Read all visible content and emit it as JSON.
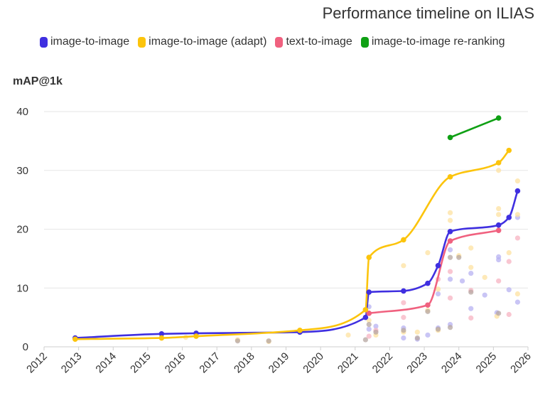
{
  "chart_data": {
    "type": "line",
    "title": "Performance timeline on ILIAS",
    "ylabel": "mAP@1k",
    "xlabel": "",
    "xlim": [
      2012,
      2026
    ],
    "ylim": [
      0,
      40
    ],
    "x_ticks": [
      "2012",
      "2013",
      "2014",
      "2015",
      "2016",
      "2017",
      "2018",
      "2019",
      "2020",
      "2021",
      "2022",
      "2023",
      "2024",
      "2025",
      "2026"
    ],
    "y_ticks": [
      "0",
      "10",
      "20",
      "30",
      "40"
    ],
    "grid": true,
    "legend_position": "top",
    "series": [
      {
        "name": "image-to-image",
        "color": "#3f2fe0",
        "points": [
          [
            2012.9,
            1.5
          ],
          [
            2015.4,
            2.2
          ],
          [
            2016.4,
            2.3
          ],
          [
            2019.4,
            2.5
          ],
          [
            2021.3,
            5.0
          ],
          [
            2021.4,
            9.3
          ],
          [
            2022.4,
            9.5
          ],
          [
            2023.1,
            10.8
          ],
          [
            2023.4,
            13.8
          ],
          [
            2023.75,
            19.6
          ],
          [
            2025.15,
            20.7
          ],
          [
            2025.45,
            22.0
          ],
          [
            2025.7,
            26.5
          ]
        ]
      },
      {
        "name": "image-to-image (adapt)",
        "color": "#fcc40c",
        "points": [
          [
            2012.9,
            1.3
          ],
          [
            2015.4,
            1.5
          ],
          [
            2016.4,
            1.8
          ],
          [
            2019.4,
            2.8
          ],
          [
            2021.3,
            6.3
          ],
          [
            2021.4,
            15.2
          ],
          [
            2022.4,
            18.2
          ],
          [
            2023.75,
            28.9
          ],
          [
            2025.15,
            31.3
          ],
          [
            2025.45,
            33.4
          ]
        ]
      },
      {
        "name": "text-to-image",
        "color": "#f0617f",
        "points": [
          [
            2021.4,
            5.7
          ],
          [
            2023.1,
            7.1
          ],
          [
            2023.75,
            18.0
          ],
          [
            2025.15,
            19.8
          ]
        ]
      },
      {
        "name": "image-to-image re-ranking",
        "color": "#0fa014",
        "points": [
          [
            2023.75,
            35.6
          ],
          [
            2025.15,
            38.9
          ]
        ]
      }
    ],
    "background_points": [
      {
        "color": "#b7b2f2",
        "points": [
          [
            2021.4,
            3.0
          ],
          [
            2021.4,
            6.8
          ],
          [
            2021.6,
            3.5
          ],
          [
            2022.4,
            1.5
          ],
          [
            2022.4,
            3.2
          ],
          [
            2022.8,
            1.3
          ],
          [
            2023.1,
            2.0
          ],
          [
            2023.4,
            3.2
          ],
          [
            2023.4,
            9.0
          ],
          [
            2023.75,
            3.8
          ],
          [
            2023.75,
            11.5
          ],
          [
            2023.75,
            16.5
          ],
          [
            2024.1,
            11.2
          ],
          [
            2024.35,
            12.5
          ],
          [
            2024.35,
            6.5
          ],
          [
            2024.75,
            8.8
          ],
          [
            2025.1,
            5.8
          ],
          [
            2025.15,
            15.3
          ],
          [
            2025.15,
            14.8
          ],
          [
            2025.45,
            9.7
          ],
          [
            2025.7,
            7.6
          ],
          [
            2025.7,
            22.0
          ]
        ]
      },
      {
        "color": "#fde2a0",
        "points": [
          [
            2020.8,
            2.0
          ],
          [
            2021.4,
            4.5
          ],
          [
            2021.6,
            2.0
          ],
          [
            2022.4,
            2.5
          ],
          [
            2022.4,
            13.8
          ],
          [
            2022.8,
            2.5
          ],
          [
            2023.1,
            6.2
          ],
          [
            2023.1,
            16.0
          ],
          [
            2023.4,
            2.8
          ],
          [
            2023.4,
            9.8
          ],
          [
            2023.75,
            22.8
          ],
          [
            2023.75,
            21.5
          ],
          [
            2024.0,
            15.5
          ],
          [
            2024.35,
            16.8
          ],
          [
            2024.35,
            13.5
          ],
          [
            2024.75,
            11.8
          ],
          [
            2025.1,
            5.2
          ],
          [
            2025.15,
            23.5
          ],
          [
            2025.15,
            22.5
          ],
          [
            2025.15,
            30.0
          ],
          [
            2025.45,
            16.0
          ],
          [
            2025.7,
            22.5
          ],
          [
            2025.7,
            28.2
          ],
          [
            2025.7,
            9.0
          ],
          [
            2017.6,
            1.2
          ],
          [
            2018.5,
            0.9
          ],
          [
            2016.1,
            1.6
          ]
        ]
      },
      {
        "color": "#f7b3c1",
        "points": [
          [
            2021.4,
            1.8
          ],
          [
            2021.6,
            2.8
          ],
          [
            2022.4,
            5.0
          ],
          [
            2022.4,
            7.5
          ],
          [
            2023.4,
            11.5
          ],
          [
            2023.75,
            8.3
          ],
          [
            2023.75,
            12.8
          ],
          [
            2024.35,
            4.9
          ],
          [
            2024.35,
            9.6
          ],
          [
            2025.15,
            11.2
          ],
          [
            2025.45,
            5.5
          ],
          [
            2025.45,
            14.5
          ],
          [
            2025.7,
            18.5
          ]
        ]
      },
      {
        "color": "#b5a5a0",
        "points": [
          [
            2017.6,
            1.0
          ],
          [
            2018.5,
            1.0
          ],
          [
            2021.3,
            1.2
          ],
          [
            2021.4,
            3.8
          ],
          [
            2021.6,
            2.5
          ],
          [
            2022.4,
            2.8
          ],
          [
            2022.8,
            1.5
          ],
          [
            2023.1,
            6.0
          ],
          [
            2023.4,
            3.0
          ],
          [
            2023.75,
            15.2
          ],
          [
            2023.75,
            3.3
          ],
          [
            2024.0,
            15.2
          ],
          [
            2024.35,
            9.3
          ],
          [
            2025.15,
            5.7
          ]
        ]
      }
    ]
  }
}
